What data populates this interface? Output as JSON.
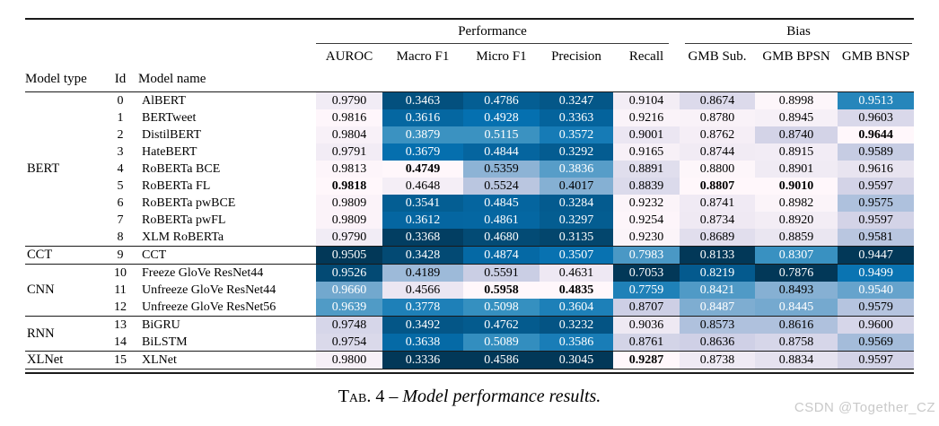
{
  "caption": {
    "label": "Tab. 4",
    "sep": " – ",
    "text": "Model performance results."
  },
  "watermark": "CSDN @Together_CZ",
  "table": {
    "col_groups": [
      {
        "label": "Performance",
        "span": 5
      },
      {
        "label": "Bias",
        "span": 3
      }
    ],
    "headers": [
      "Model type",
      "Id",
      "Model name",
      "AUROC",
      "Macro F1",
      "Micro F1",
      "Precision",
      "Recall",
      "GMB Sub.",
      "GMB BPSN",
      "GMB BNSP"
    ],
    "heatmap": {
      "stops": [
        "#fff7fb",
        "#ece7f2",
        "#d0d1e6",
        "#a6bddb",
        "#74a9cf",
        "#3690c0",
        "#0570b0",
        "#045a8d",
        "#023858"
      ],
      "text_light": "#ffffff",
      "text_dark": "#000000",
      "text_threshold": 0.53
    },
    "groups": [
      {
        "type": "BERT",
        "rows": [
          {
            "id": "0",
            "name": "AlBERT",
            "values": [
              "0.9790",
              "0.3463",
              "0.4786",
              "0.3247",
              "0.9104",
              "0.8674",
              "0.8998",
              "0.9513"
            ]
          },
          {
            "id": "1",
            "name": "BERTweet",
            "values": [
              "0.9816",
              "0.3616",
              "0.4928",
              "0.3363",
              "0.9216",
              "0.8780",
              "0.8945",
              "0.9603"
            ]
          },
          {
            "id": "2",
            "name": "DistilBERT",
            "values": [
              "0.9804",
              "0.3879",
              "0.5115",
              "0.3572",
              "0.9001",
              "0.8762",
              "0.8740",
              "0.9644"
            ]
          },
          {
            "id": "3",
            "name": "HateBERT",
            "values": [
              "0.9791",
              "0.3679",
              "0.4844",
              "0.3292",
              "0.9165",
              "0.8744",
              "0.8915",
              "0.9589"
            ]
          },
          {
            "id": "4",
            "name": "RoBERTa BCE",
            "values": [
              "0.9813",
              "0.4749",
              "0.5359",
              "0.3836",
              "0.8891",
              "0.8800",
              "0.8901",
              "0.9616"
            ]
          },
          {
            "id": "5",
            "name": "RoBERTa FL",
            "values": [
              "0.9818",
              "0.4648",
              "0.5524",
              "0.4017",
              "0.8839",
              "0.8807",
              "0.9010",
              "0.9597"
            ]
          },
          {
            "id": "6",
            "name": "RoBERTa pwBCE",
            "values": [
              "0.9809",
              "0.3541",
              "0.4845",
              "0.3284",
              "0.9232",
              "0.8741",
              "0.8982",
              "0.9575"
            ]
          },
          {
            "id": "7",
            "name": "RoBERTa pwFL",
            "values": [
              "0.9809",
              "0.3612",
              "0.4861",
              "0.3297",
              "0.9254",
              "0.8734",
              "0.8920",
              "0.9597"
            ]
          },
          {
            "id": "8",
            "name": "XLM RoBERTa",
            "values": [
              "0.9790",
              "0.3368",
              "0.4680",
              "0.3135",
              "0.9230",
              "0.8689",
              "0.8859",
              "0.9581"
            ]
          }
        ]
      },
      {
        "type": "CCT",
        "rows": [
          {
            "id": "9",
            "name": "CCT",
            "values": [
              "0.9505",
              "0.3428",
              "0.4874",
              "0.3507",
              "0.7983",
              "0.8133",
              "0.8307",
              "0.9447"
            ]
          }
        ]
      },
      {
        "type": "CNN",
        "rows": [
          {
            "id": "10",
            "name": "Freeze GloVe ResNet44",
            "values": [
              "0.9526",
              "0.4189",
              "0.5591",
              "0.4631",
              "0.7053",
              "0.8219",
              "0.7876",
              "0.9499"
            ]
          },
          {
            "id": "11",
            "name": "Unfreeze GloVe ResNet44",
            "values": [
              "0.9660",
              "0.4566",
              "0.5958",
              "0.4835",
              "0.7759",
              "0.8421",
              "0.8493",
              "0.9540"
            ]
          },
          {
            "id": "12",
            "name": "Unfreeze GloVe ResNet56",
            "values": [
              "0.9639",
              "0.3778",
              "0.5098",
              "0.3604",
              "0.8707",
              "0.8487",
              "0.8445",
              "0.9579"
            ]
          }
        ]
      },
      {
        "type": "RNN",
        "rows": [
          {
            "id": "13",
            "name": "BiGRU",
            "values": [
              "0.9748",
              "0.3492",
              "0.4762",
              "0.3232",
              "0.9036",
              "0.8573",
              "0.8616",
              "0.9600"
            ]
          },
          {
            "id": "14",
            "name": "BiLSTM",
            "values": [
              "0.9754",
              "0.3638",
              "0.5089",
              "0.3586",
              "0.8761",
              "0.8636",
              "0.8758",
              "0.9569"
            ]
          }
        ]
      },
      {
        "type": "XLNet",
        "rows": [
          {
            "id": "15",
            "name": "XLNet",
            "values": [
              "0.9800",
              "0.3336",
              "0.4586",
              "0.3045",
              "0.9287",
              "0.8738",
              "0.8834",
              "0.9597"
            ]
          }
        ]
      }
    ]
  }
}
